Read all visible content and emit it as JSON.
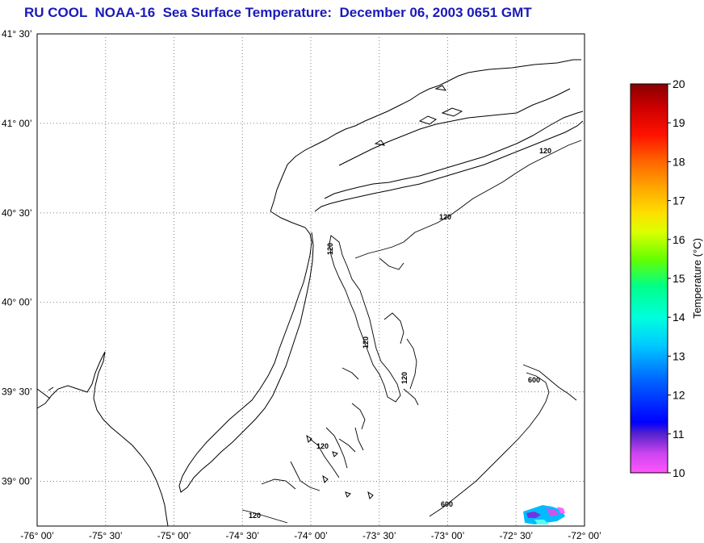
{
  "title": "RU COOL  NOAA-16  Sea Surface Temperature:  December 06, 2003 0651 GMT",
  "colors": {
    "title": "#1a1ab8",
    "land": "#000000",
    "grid": "#808080"
  },
  "map": {
    "lon_ticks": [
      {
        "lon": -76.0,
        "label": "-76° 00’"
      },
      {
        "lon": -75.5,
        "label": "-75° 30’"
      },
      {
        "lon": -75.0,
        "label": "-75° 00’"
      },
      {
        "lon": -74.5,
        "label": "-74° 30’"
      },
      {
        "lon": -74.0,
        "label": "-74° 00’"
      },
      {
        "lon": -73.5,
        "label": "-73° 30’"
      },
      {
        "lon": -73.0,
        "label": "-73° 00’"
      },
      {
        "lon": -72.5,
        "label": "-72° 30’"
      },
      {
        "lon": -72.0,
        "label": "-72° 00’"
      }
    ],
    "lat_ticks": [
      {
        "lat": 41.5,
        "label": "41° 30’"
      },
      {
        "lat": 41.0,
        "label": "41° 00’"
      },
      {
        "lat": 40.5,
        "label": "40° 30’"
      },
      {
        "lat": 40.0,
        "label": "40° 00’"
      },
      {
        "lat": 39.5,
        "label": "39° 30’"
      },
      {
        "lat": 39.0,
        "label": "39° 00’"
      }
    ],
    "bathymetry_labels": [
      "120",
      "120",
      "120",
      "120",
      "120",
      "120",
      "120",
      "600",
      "600"
    ]
  },
  "colorbar": {
    "title": "Temperature (°C)",
    "min": 10,
    "max": 20,
    "ticks": [
      "10",
      "11",
      "12",
      "13",
      "14",
      "15",
      "16",
      "17",
      "18",
      "19",
      "20"
    ]
  }
}
